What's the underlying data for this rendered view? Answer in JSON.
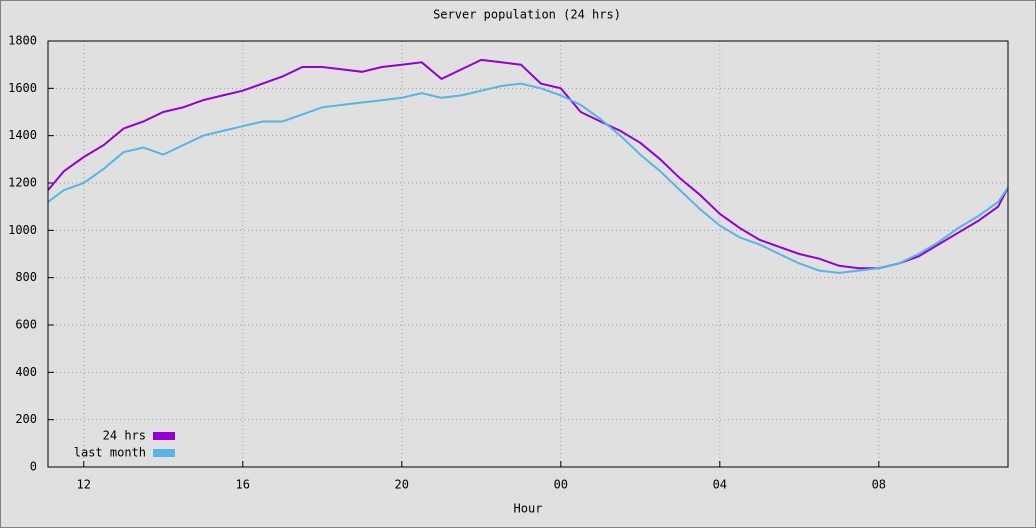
{
  "chart_data": {
    "type": "line",
    "title": "Server population (24 hrs)",
    "x_label": "Hour",
    "x": [
      11.1,
      11.5,
      12,
      12.5,
      13,
      13.5,
      14,
      14.5,
      15,
      15.5,
      16,
      16.5,
      17,
      17.5,
      18,
      18.5,
      19,
      19.5,
      20,
      20.5,
      21,
      21.5,
      22,
      22.5,
      23,
      23.5,
      24,
      24.5,
      25,
      25.5,
      26,
      26.5,
      27,
      27.5,
      28,
      28.5,
      29,
      29.5,
      30,
      30.5,
      31,
      31.5,
      32,
      32.5,
      33,
      33.5,
      34,
      34.5,
      35,
      35.25
    ],
    "series": [
      {
        "name": "24 hrs",
        "color": "#9400d3",
        "values": [
          1170,
          1250,
          1310,
          1360,
          1430,
          1460,
          1500,
          1520,
          1550,
          1570,
          1590,
          1620,
          1650,
          1690,
          1690,
          1680,
          1670,
          1690,
          1700,
          1710,
          1640,
          1680,
          1720,
          1710,
          1700,
          1620,
          1600,
          1500,
          1460,
          1420,
          1370,
          1300,
          1220,
          1150,
          1070,
          1010,
          960,
          930,
          900,
          880,
          850,
          840,
          840,
          860,
          890,
          940,
          990,
          1040,
          1100,
          1180
        ]
      },
      {
        "name": "last month",
        "color": "#56b4e9",
        "values": [
          1120,
          1170,
          1200,
          1260,
          1330,
          1350,
          1320,
          1360,
          1400,
          1420,
          1440,
          1460,
          1460,
          1490,
          1520,
          1530,
          1540,
          1550,
          1560,
          1580,
          1560,
          1570,
          1590,
          1610,
          1620,
          1600,
          1570,
          1530,
          1470,
          1400,
          1320,
          1250,
          1170,
          1090,
          1020,
          970,
          940,
          900,
          860,
          830,
          820,
          830,
          840,
          860,
          900,
          950,
          1010,
          1060,
          1120,
          1180
        ]
      }
    ],
    "xlim": [
      11.1,
      35.25
    ],
    "xticks": [
      12,
      16,
      20,
      {
        "value": 24,
        "label": "00"
      },
      {
        "value": 28,
        "label": "04"
      },
      {
        "value": 32,
        "label": "08"
      }
    ],
    "ylim": [
      0,
      1800
    ],
    "yticks": [
      0,
      200,
      400,
      600,
      800,
      1000,
      1200,
      1400,
      1600,
      1800
    ],
    "grid": true,
    "legend": "lower left"
  }
}
